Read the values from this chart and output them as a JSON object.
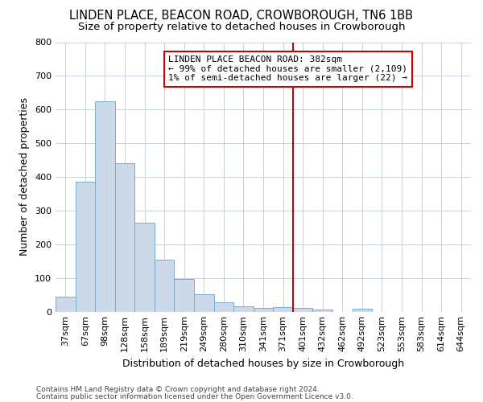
{
  "title": "LINDEN PLACE, BEACON ROAD, CROWBOROUGH, TN6 1BB",
  "subtitle": "Size of property relative to detached houses in Crowborough",
  "xlabel": "Distribution of detached houses by size in Crowborough",
  "ylabel": "Number of detached properties",
  "bar_values": [
    45,
    385,
    625,
    440,
    265,
    155,
    97,
    52,
    28,
    15,
    11,
    13,
    10,
    5,
    0,
    8,
    0,
    0,
    0,
    0,
    0
  ],
  "bar_labels": [
    "37sqm",
    "67sqm",
    "98sqm",
    "128sqm",
    "158sqm",
    "189sqm",
    "219sqm",
    "249sqm",
    "280sqm",
    "310sqm",
    "341sqm",
    "371sqm",
    "401sqm",
    "432sqm",
    "462sqm",
    "492sqm",
    "523sqm",
    "553sqm",
    "583sqm",
    "614sqm",
    "644sqm"
  ],
  "bar_color": "#ccd9e8",
  "bar_edge_color": "#7aaad0",
  "bar_edge_width": 0.7,
  "grid_color": "#c8d0dc",
  "background_color": "#ffffff",
  "plot_bg_color": "#ffffff",
  "vline_color": "#cc0000",
  "vline_linewidth": 1.5,
  "annotation_title": "LINDEN PLACE BEACON ROAD: 382sqm",
  "annotation_line1": "← 99% of detached houses are smaller (2,109)",
  "annotation_line2": "1% of semi-detached houses are larger (22) →",
  "annotation_box_color": "#ffffff",
  "annotation_box_edge": "#cc0000",
  "ylim": [
    0,
    800
  ],
  "yticks": [
    0,
    100,
    200,
    300,
    400,
    500,
    600,
    700,
    800
  ],
  "footnote1": "Contains HM Land Registry data © Crown copyright and database right 2024.",
  "footnote2": "Contains public sector information licensed under the Open Government Licence v3.0.",
  "title_fontsize": 10.5,
  "subtitle_fontsize": 9.5,
  "tick_fontsize": 8,
  "ylabel_fontsize": 9,
  "xlabel_fontsize": 9,
  "annot_fontsize": 8
}
